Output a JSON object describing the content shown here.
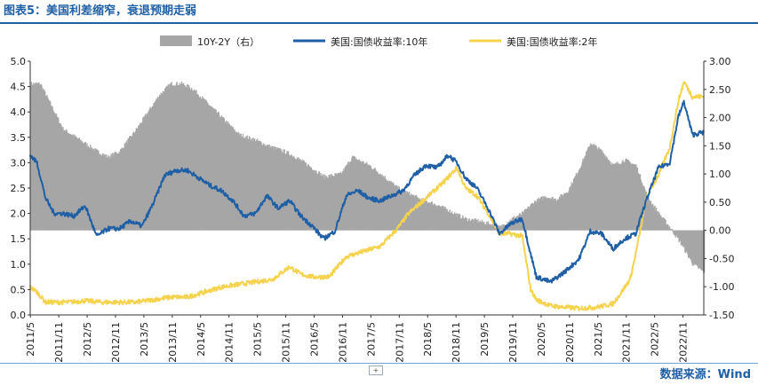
{
  "header": {
    "title": "图表5：美国利差缩窄，衰退预期走弱"
  },
  "footer": {
    "source": "数据来源：Wind",
    "expand_label": "+"
  },
  "colors": {
    "title": "#1f5fa6",
    "spread": "#a6a6a6",
    "y10": "#1f5fa6",
    "y2": "#f5d34f"
  },
  "chart_data": {
    "type": "line",
    "title": "图表5：美国利差缩窄，衰退预期走弱",
    "legend": [
      "10Y-2Y（右）",
      "美国:国债收益率:10年",
      "美国:国债收益率:2年"
    ],
    "legend_position": "top",
    "y_left": {
      "min": 0.0,
      "max": 5.0,
      "ticks": [
        "0.0",
        "0.5",
        "1.0",
        "1.5",
        "2.0",
        "2.5",
        "3.0",
        "3.5",
        "4.0",
        "4.5",
        "5.0"
      ]
    },
    "y_right": {
      "min": -1.5,
      "max": 3.0,
      "ticks": [
        "-1.50",
        "-1.00",
        "-0.50",
        "0.00",
        "0.50",
        "1.00",
        "1.50",
        "2.00",
        "2.50",
        "3.00"
      ]
    },
    "x_tick_labels": [
      "2011/5",
      "2011/11",
      "2012/5",
      "2012/11",
      "2013/5",
      "2013/11",
      "2014/5",
      "2014/11",
      "2015/5",
      "2015/11",
      "2016/5",
      "2016/11",
      "2017/5",
      "2017/11",
      "2018/5",
      "2018/11",
      "2019/5",
      "2019/11",
      "2020/5",
      "2020/11",
      "2021/5",
      "2021/11",
      "2022/5",
      "2022/11"
    ],
    "x_start": 2011.33,
    "x_end": 2023.2,
    "series": [
      {
        "name": "10Y-2Y（右）",
        "type": "area",
        "axis": "right",
        "x": [
          2011.33,
          2011.5,
          2011.7,
          2011.9,
          2012.2,
          2012.5,
          2012.7,
          2012.9,
          2013.2,
          2013.4,
          2013.6,
          2013.8,
          2014.0,
          2014.2,
          2014.5,
          2014.8,
          2015.0,
          2015.3,
          2015.5,
          2015.8,
          2016.0,
          2016.3,
          2016.5,
          2016.8,
          2017.0,
          2017.3,
          2017.5,
          2017.8,
          2018.0,
          2018.2,
          2018.5,
          2018.8,
          2019.0,
          2019.2,
          2019.4,
          2019.6,
          2019.8,
          2020.0,
          2020.2,
          2020.4,
          2020.6,
          2020.8,
          2021.0,
          2021.2,
          2021.4,
          2021.6,
          2021.8,
          2022.0,
          2022.2,
          2022.4,
          2022.6,
          2022.8,
          2023.0,
          2023.2
        ],
        "values": [
          2.6,
          2.6,
          2.2,
          1.8,
          1.6,
          1.4,
          1.3,
          1.4,
          1.8,
          2.1,
          2.4,
          2.6,
          2.6,
          2.5,
          2.2,
          1.9,
          1.7,
          1.6,
          1.5,
          1.4,
          1.3,
          1.1,
          0.95,
          1.0,
          1.3,
          1.15,
          1.0,
          0.75,
          0.65,
          0.55,
          0.45,
          0.3,
          0.2,
          0.17,
          0.12,
          0.05,
          0.2,
          0.3,
          0.5,
          0.6,
          0.55,
          0.7,
          1.1,
          1.55,
          1.4,
          1.15,
          1.25,
          1.15,
          0.6,
          0.3,
          0.05,
          -0.25,
          -0.6,
          -0.75
        ]
      },
      {
        "name": "美国:国债收益率:10年",
        "type": "line",
        "axis": "left",
        "x": [
          2011.33,
          2011.45,
          2011.6,
          2011.75,
          2011.9,
          2012.1,
          2012.3,
          2012.5,
          2012.7,
          2012.9,
          2013.1,
          2013.3,
          2013.5,
          2013.7,
          2013.9,
          2014.1,
          2014.3,
          2014.5,
          2014.7,
          2014.9,
          2015.1,
          2015.3,
          2015.5,
          2015.7,
          2015.9,
          2016.1,
          2016.3,
          2016.5,
          2016.7,
          2016.9,
          2017.1,
          2017.3,
          2017.5,
          2017.7,
          2017.9,
          2018.1,
          2018.3,
          2018.5,
          2018.7,
          2018.85,
          2019.0,
          2019.2,
          2019.4,
          2019.6,
          2019.8,
          2020.0,
          2020.15,
          2020.25,
          2020.5,
          2020.75,
          2021.0,
          2021.2,
          2021.4,
          2021.6,
          2021.8,
          2022.0,
          2022.2,
          2022.4,
          2022.6,
          2022.75,
          2022.85,
          2023.0,
          2023.2
        ],
        "values": [
          3.15,
          3.0,
          2.3,
          2.0,
          2.0,
          1.95,
          2.15,
          1.55,
          1.7,
          1.7,
          1.85,
          1.75,
          2.2,
          2.75,
          2.85,
          2.85,
          2.7,
          2.55,
          2.45,
          2.25,
          1.95,
          2.0,
          2.35,
          2.1,
          2.25,
          1.95,
          1.75,
          1.5,
          1.65,
          2.35,
          2.45,
          2.3,
          2.25,
          2.35,
          2.45,
          2.75,
          2.95,
          2.9,
          3.15,
          3.0,
          2.7,
          2.5,
          2.1,
          1.6,
          1.8,
          1.9,
          1.2,
          0.75,
          0.65,
          0.85,
          1.1,
          1.65,
          1.6,
          1.3,
          1.5,
          1.6,
          2.3,
          2.9,
          3.0,
          3.9,
          4.2,
          3.55,
          3.6
        ]
      },
      {
        "name": "美国:国债收益率:2年",
        "type": "line",
        "axis": "left",
        "x": [
          2011.33,
          2011.45,
          2011.6,
          2011.8,
          2012.0,
          2012.3,
          2012.6,
          2012.9,
          2013.2,
          2013.5,
          2013.8,
          2014.1,
          2014.4,
          2014.7,
          2015.0,
          2015.3,
          2015.6,
          2015.9,
          2016.1,
          2016.3,
          2016.6,
          2016.9,
          2017.2,
          2017.5,
          2017.8,
          2018.0,
          2018.3,
          2018.6,
          2018.85,
          2019.0,
          2019.2,
          2019.4,
          2019.6,
          2019.8,
          2020.0,
          2020.15,
          2020.25,
          2020.5,
          2020.75,
          2021.0,
          2021.3,
          2021.6,
          2021.75,
          2021.9,
          2022.0,
          2022.2,
          2022.4,
          2022.6,
          2022.75,
          2022.85,
          2023.0,
          2023.2
        ],
        "values": [
          0.55,
          0.45,
          0.25,
          0.25,
          0.25,
          0.28,
          0.25,
          0.25,
          0.25,
          0.3,
          0.35,
          0.35,
          0.45,
          0.55,
          0.6,
          0.65,
          0.7,
          0.95,
          0.8,
          0.75,
          0.75,
          1.15,
          1.25,
          1.35,
          1.7,
          2.0,
          2.3,
          2.6,
          2.9,
          2.5,
          2.35,
          2.0,
          1.6,
          1.6,
          1.55,
          0.5,
          0.3,
          0.18,
          0.15,
          0.13,
          0.15,
          0.22,
          0.45,
          0.7,
          1.2,
          2.35,
          2.75,
          3.3,
          4.2,
          4.6,
          4.3,
          4.3
        ]
      }
    ]
  }
}
